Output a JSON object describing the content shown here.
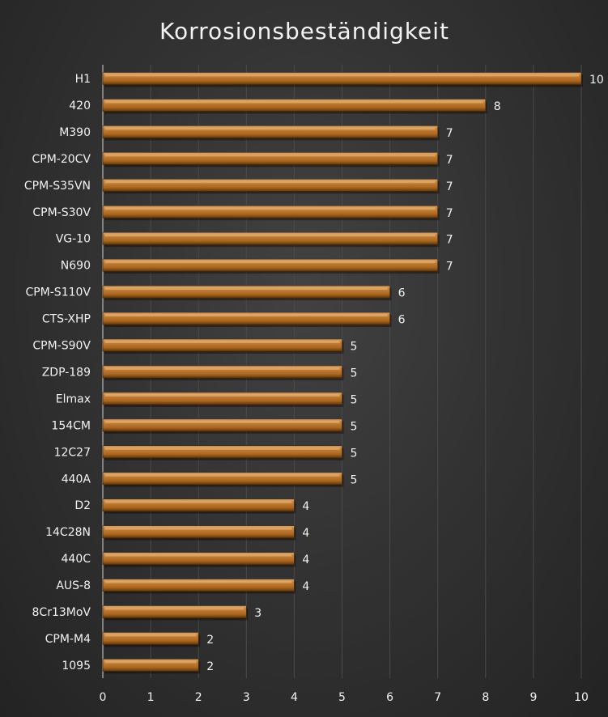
{
  "chart_data": {
    "type": "bar",
    "orientation": "horizontal",
    "title": "Korrosionsbeständigkeit",
    "categories": [
      "H1",
      "420",
      "M390",
      "CPM-20CV",
      "CPM-S35VN",
      "CPM-S30V",
      "VG-10",
      "N690",
      "CPM-S110V",
      "CTS-XHP",
      "CPM-S90V",
      "ZDP-189",
      "Elmax",
      "154CM",
      "12C27",
      "440A",
      "D2",
      "14C28N",
      "440C",
      "AUS-8",
      "8Cr13MoV",
      "CPM-M4",
      "1095"
    ],
    "values": [
      10,
      8,
      7,
      7,
      7,
      7,
      7,
      7,
      6,
      6,
      5,
      5,
      5,
      5,
      5,
      5,
      4,
      4,
      4,
      4,
      3,
      2,
      2
    ],
    "xlim": [
      0,
      10
    ],
    "xticks": [
      0,
      1,
      2,
      3,
      4,
      5,
      6,
      7,
      8,
      9,
      10
    ],
    "grid": true,
    "bar_color": "#b8732e",
    "xlabel": "",
    "ylabel": ""
  }
}
